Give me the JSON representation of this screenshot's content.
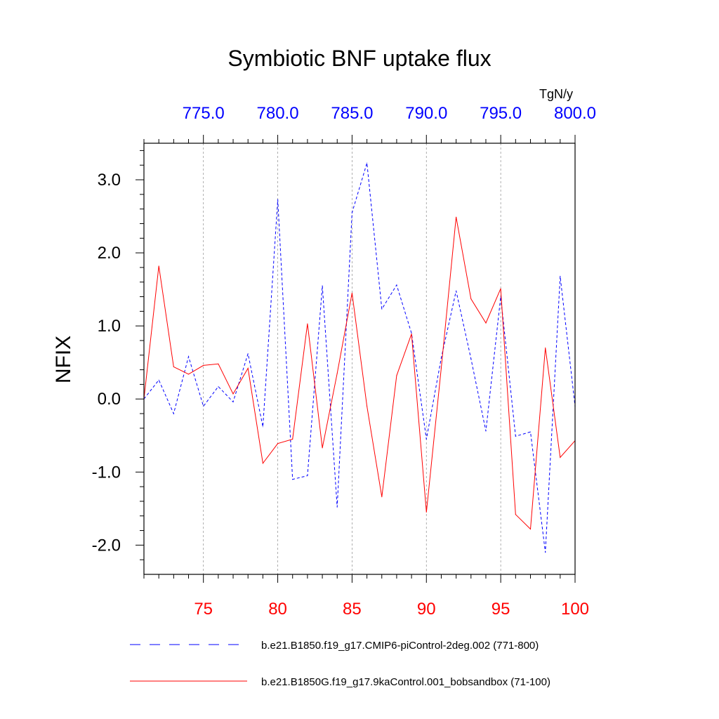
{
  "chart_data": {
    "type": "line",
    "title": "Symbiotic BNF uptake flux",
    "ylabel": "NFIX",
    "units": "TgN/y",
    "ylim": [
      -2.4,
      3.5
    ],
    "yticks": [
      -2.0,
      -1.0,
      0.0,
      1.0,
      2.0,
      3.0
    ],
    "ytick_labels": [
      "-2.0",
      "-1.0",
      "0.0",
      "1.0",
      "2.0",
      "3.0"
    ],
    "bottom_axis": {
      "range": [
        71,
        100
      ],
      "ticks": [
        75,
        80,
        85,
        90,
        95,
        100
      ],
      "tick_labels": [
        "75",
        "80",
        "85",
        "90",
        "95",
        "100"
      ],
      "color": "#ff0000"
    },
    "top_axis": {
      "range": [
        771,
        800
      ],
      "ticks": [
        775,
        780,
        785,
        790,
        795,
        800
      ],
      "tick_labels": [
        "775.0",
        "780.0",
        "785.0",
        "790.0",
        "795.0",
        "800.0"
      ],
      "color": "#0000ff"
    },
    "grid": "vertical dashed at major x ticks",
    "legend_position": "bottom",
    "series": [
      {
        "name": "b.e21.B1850.f19_g17.CMIP6-piControl-2deg.002 (771-800)",
        "axis": "top",
        "color": "#0000ff",
        "dash": "dashed",
        "x": [
          771,
          772,
          773,
          774,
          775,
          776,
          777,
          778,
          779,
          780,
          781,
          782,
          783,
          784,
          785,
          786,
          787,
          788,
          789,
          790,
          791,
          792,
          793,
          794,
          795,
          796,
          797,
          798,
          799,
          800
        ],
        "values": [
          0.0,
          0.26,
          -0.2,
          0.58,
          -0.1,
          0.17,
          -0.04,
          0.62,
          -0.38,
          2.73,
          -1.1,
          -1.05,
          1.55,
          -1.48,
          2.55,
          3.23,
          1.23,
          1.56,
          0.9,
          -0.55,
          0.56,
          1.48,
          0.55,
          -0.44,
          1.4,
          -0.51,
          -0.45,
          -2.1,
          1.68,
          -0.1
        ]
      },
      {
        "name": "b.e21.B1850G.f19_g17.9kaControl.001_bobsandbox (71-100)",
        "axis": "bottom",
        "color": "#ff0000",
        "dash": "solid",
        "x": [
          71,
          72,
          73,
          74,
          75,
          76,
          77,
          78,
          79,
          80,
          81,
          82,
          83,
          84,
          85,
          86,
          87,
          88,
          89,
          90,
          91,
          92,
          93,
          94,
          95,
          96,
          97,
          98,
          99,
          100
        ],
        "values": [
          0.0,
          1.82,
          0.44,
          0.34,
          0.46,
          0.48,
          0.07,
          0.42,
          -0.88,
          -0.61,
          -0.55,
          1.03,
          -0.67,
          0.35,
          1.45,
          -0.1,
          -1.34,
          0.32,
          0.89,
          -1.55,
          0.42,
          2.49,
          1.37,
          1.04,
          1.51,
          -1.58,
          -1.78,
          0.7,
          -0.8,
          -0.57
        ]
      }
    ]
  }
}
